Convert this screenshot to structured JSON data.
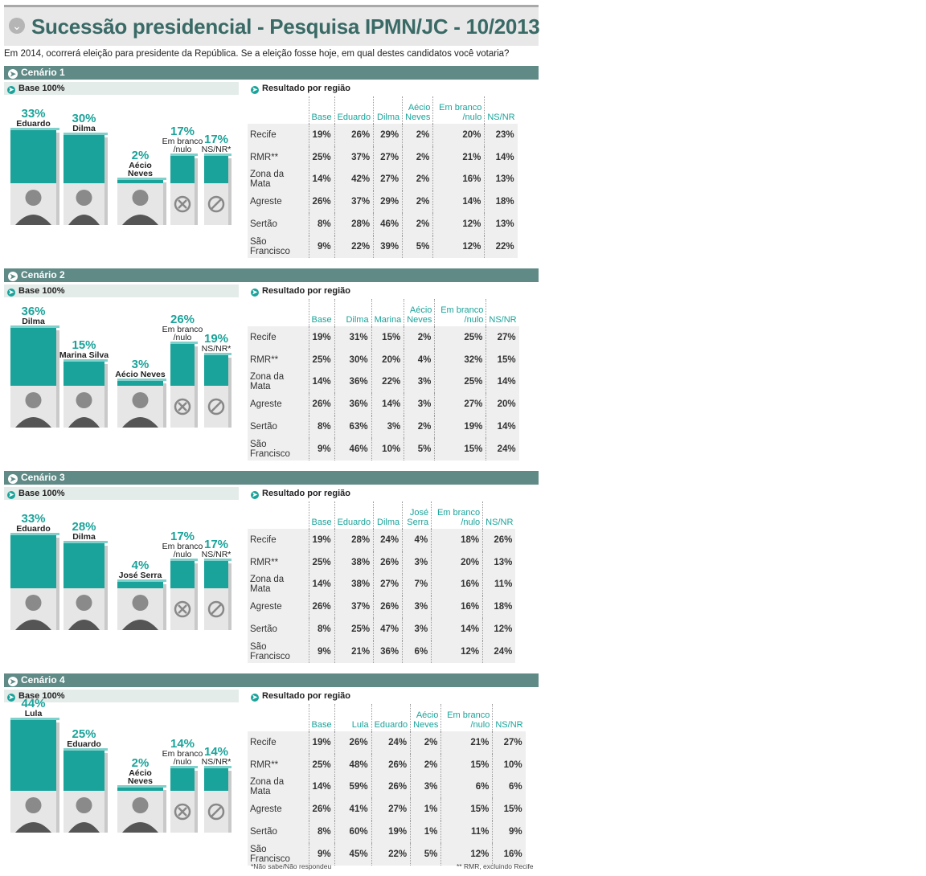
{
  "title": "Sucessão presidencial - Pesquisa IPMN/JC - 10/2013",
  "question": "Em 2014, ocorrerá eleição para presidente da República. Se a eleição fosse hoje, em qual destes candidatos você votaria?",
  "base_label": "Base 100%",
  "region_label": "Resultado por região",
  "regions": [
    "Recife",
    "RMR**",
    "Zona da Mata",
    "Agreste",
    "Sertão",
    "São Francisco"
  ],
  "footnote_left": "*Não sabe/Não respondeu",
  "footnote_right": "** RMR, excluindo Recife",
  "colors": {
    "accent": "#1aa39a",
    "header": "#5f8a86",
    "bar": "#1aa39a",
    "bar_top": "#7fd0ca"
  },
  "icons": {
    "blank": "x-circle-icon",
    "nsnr": "slash-circle-icon"
  },
  "chart_data": [
    {
      "type": "bar",
      "scenario": "Cenário 1",
      "categories": [
        "Eduardo",
        "Dilma",
        "Aécio Neves",
        "Em branco /nulo",
        "NS/NR*"
      ],
      "values": [
        33,
        30,
        2,
        17,
        17
      ],
      "value_labels": [
        "33%",
        "30%",
        "2%",
        "17%",
        "17%"
      ],
      "table": {
        "columns": [
          "Base",
          "Eduardo",
          "Dilma",
          "Aécio Neves",
          "Em branco /nulo",
          "NS/NR"
        ],
        "rows": [
          [
            "19%",
            "26%",
            "29%",
            "2%",
            "20%",
            "23%"
          ],
          [
            "25%",
            "37%",
            "27%",
            "2%",
            "21%",
            "14%"
          ],
          [
            "14%",
            "42%",
            "27%",
            "2%",
            "16%",
            "13%"
          ],
          [
            "26%",
            "37%",
            "29%",
            "2%",
            "14%",
            "18%"
          ],
          [
            "8%",
            "28%",
            "46%",
            "2%",
            "12%",
            "13%"
          ],
          [
            "9%",
            "22%",
            "39%",
            "5%",
            "12%",
            "22%"
          ]
        ]
      }
    },
    {
      "type": "bar",
      "scenario": "Cenário 2",
      "categories": [
        "Dilma",
        "Marina Silva",
        "Aécio Neves",
        "Em branco /nulo",
        "NS/NR*"
      ],
      "values": [
        36,
        15,
        3,
        26,
        19
      ],
      "value_labels": [
        "36%",
        "15%",
        "3%",
        "26%",
        "19%"
      ],
      "table": {
        "columns": [
          "Base",
          "Dilma",
          "Marina",
          "Aécio Neves",
          "Em branco /nulo",
          "NS/NR"
        ],
        "rows": [
          [
            "19%",
            "31%",
            "15%",
            "2%",
            "25%",
            "27%"
          ],
          [
            "25%",
            "30%",
            "20%",
            "4%",
            "32%",
            "15%"
          ],
          [
            "14%",
            "36%",
            "22%",
            "3%",
            "25%",
            "14%"
          ],
          [
            "26%",
            "36%",
            "14%",
            "3%",
            "27%",
            "20%"
          ],
          [
            "8%",
            "63%",
            "3%",
            "2%",
            "19%",
            "14%"
          ],
          [
            "9%",
            "46%",
            "10%",
            "5%",
            "15%",
            "24%"
          ]
        ]
      }
    },
    {
      "type": "bar",
      "scenario": "Cenário 3",
      "categories": [
        "Eduardo",
        "Dilma",
        "José Serra",
        "Em branco /nulo",
        "NS/NR*"
      ],
      "values": [
        33,
        28,
        4,
        17,
        17
      ],
      "value_labels": [
        "33%",
        "28%",
        "4%",
        "17%",
        "17%"
      ],
      "table": {
        "columns": [
          "Base",
          "Eduardo",
          "Dilma",
          "José Serra",
          "Em branco /nulo",
          "NS/NR"
        ],
        "rows": [
          [
            "19%",
            "28%",
            "24%",
            "4%",
            "18%",
            "26%"
          ],
          [
            "25%",
            "38%",
            "26%",
            "3%",
            "20%",
            "13%"
          ],
          [
            "14%",
            "38%",
            "27%",
            "7%",
            "16%",
            "11%"
          ],
          [
            "26%",
            "37%",
            "26%",
            "3%",
            "16%",
            "18%"
          ],
          [
            "8%",
            "25%",
            "47%",
            "3%",
            "14%",
            "12%"
          ],
          [
            "9%",
            "21%",
            "36%",
            "6%",
            "12%",
            "24%"
          ]
        ]
      }
    },
    {
      "type": "bar",
      "scenario": "Cenário 4",
      "categories": [
        "Lula",
        "Eduardo",
        "Aécio Neves",
        "Em branco /nulo",
        "NS/NR*"
      ],
      "values": [
        44,
        25,
        2,
        14,
        14
      ],
      "value_labels": [
        "44%",
        "25%",
        "2%",
        "14%",
        "14%"
      ],
      "table": {
        "columns": [
          "Base",
          "Lula",
          "Eduardo",
          "Aécio Neves",
          "Em branco /nulo",
          "NS/NR"
        ],
        "rows": [
          [
            "19%",
            "26%",
            "24%",
            "2%",
            "21%",
            "27%"
          ],
          [
            "25%",
            "48%",
            "26%",
            "2%",
            "15%",
            "10%"
          ],
          [
            "14%",
            "59%",
            "26%",
            "3%",
            "6%",
            "6%"
          ],
          [
            "26%",
            "41%",
            "27%",
            "1%",
            "15%",
            "15%"
          ],
          [
            "8%",
            "60%",
            "19%",
            "1%",
            "11%",
            "9%"
          ],
          [
            "9%",
            "45%",
            "22%",
            "5%",
            "12%",
            "16%"
          ]
        ]
      }
    }
  ]
}
